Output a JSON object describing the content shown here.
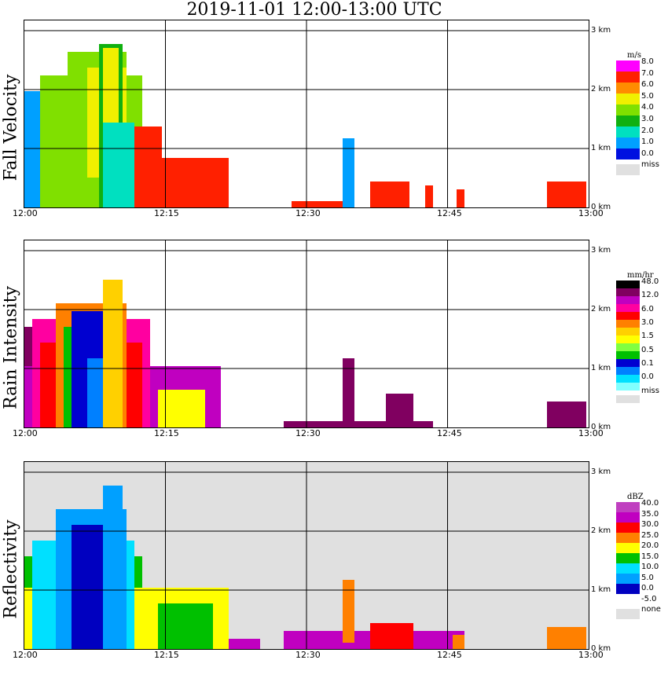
{
  "title": "2019-11-01   12:00-13:00 UTC",
  "chart_data": [
    {
      "type": "heatmap",
      "ylabel": "Fall Velocity",
      "x_ticks": [
        "12:00",
        "12:15",
        "12:30",
        "12:45",
        "13:00"
      ],
      "y_ticks": [
        "3 km",
        "2 km",
        "1 km",
        "0 km"
      ],
      "ylim_km": [
        0,
        3
      ],
      "grid": true,
      "background": "#ffffff",
      "colorbar": {
        "unit": "m/s",
        "labels": [
          "8.0",
          "7.0",
          "6.0",
          "5.0",
          "4.0",
          "3.0",
          "2.0",
          "1.0",
          "0.0",
          "miss"
        ],
        "colors": [
          "#ff00ff",
          "#ff2000",
          "#ff8c00",
          "#f0f000",
          "#80e000",
          "#10b010",
          "#00e0c0",
          "#00a0ff",
          "#0010e0",
          "#e0e0e0"
        ]
      }
    },
    {
      "type": "heatmap",
      "ylabel": "Rain Intensity",
      "x_ticks": [
        "12:00",
        "12:15",
        "12:30",
        "12:45",
        "13:00"
      ],
      "y_ticks": [
        "3 km",
        "2 km",
        "1 km",
        "0 km"
      ],
      "ylim_km": [
        0,
        3
      ],
      "grid": true,
      "background": "#ffffff",
      "colorbar": {
        "unit": "mm/hr",
        "labels": [
          "48.0",
          "12.0",
          "6.0",
          "3.0",
          "1.5",
          "0.5",
          "0.1",
          "0.0",
          "miss"
        ],
        "colors": [
          "#000000",
          "#800060",
          "#c000c0",
          "#ff00a0",
          "#ff0000",
          "#ff8000",
          "#ffd000",
          "#ffff00",
          "#80ff40",
          "#00c000",
          "#0000d0",
          "#0080ff",
          "#00e0ff",
          "#80ffff",
          "#e0e0e0"
        ]
      }
    },
    {
      "type": "heatmap",
      "ylabel": "Reflectivity",
      "x_ticks": [
        "12:00",
        "12:15",
        "12:30",
        "12:45",
        "13:00"
      ],
      "y_ticks": [
        "3 km",
        "2 km",
        "1 km",
        "0 km"
      ],
      "ylim_km": [
        0,
        3
      ],
      "grid": true,
      "background": "#e0e0e0",
      "colorbar": {
        "unit": "dBZ",
        "labels": [
          "40.0",
          "35.0",
          "30.0",
          "25.0",
          "20.0",
          "15.0",
          "10.0",
          "5.0",
          "0.0",
          "-5.0",
          "none"
        ],
        "colors": [
          "#c040c0",
          "#c000c0",
          "#ff0000",
          "#ff8000",
          "#ffff00",
          "#00c000",
          "#00e0ff",
          "#00a0ff",
          "#0000c0",
          "#ffffff",
          "#e0e0e0"
        ]
      }
    }
  ]
}
